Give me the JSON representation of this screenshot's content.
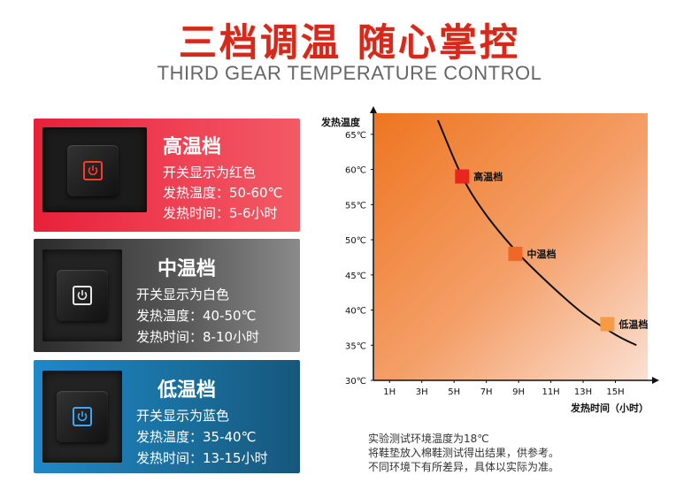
{
  "header": {
    "title": "三档调温 随心掌控",
    "subtitle": "THIRD GEAR TEMPERATURE CONTROL"
  },
  "modes": [
    {
      "name": "高温档",
      "display": "开关显示为红色",
      "temp": "发热温度：50-60℃",
      "time": "发热时间：5-6小时",
      "color": "#e8203a",
      "icon_color": "#ff3a2a"
    },
    {
      "name": "中温档",
      "display": "开关显示为白色",
      "temp": "发热温度：40-50℃",
      "time": "发热时间：8-10小时",
      "color": "#575757",
      "icon_color": "#e8e8e8"
    },
    {
      "name": "低温档",
      "display": "开关显示为蓝色",
      "temp": "发热温度：35-40℃",
      "time": "发热时间：13-15小时",
      "color": "#1e88c8",
      "icon_color": "#3aa8ff"
    }
  ],
  "chart_data": {
    "type": "line",
    "ylabel": "发热温度",
    "xlabel": "发热时间（小时）",
    "y_ticks": [
      "30℃",
      "35℃",
      "40℃",
      "45℃",
      "50℃",
      "55℃",
      "60℃",
      "65℃"
    ],
    "y_values": [
      30,
      35,
      40,
      45,
      50,
      55,
      60,
      65
    ],
    "x_ticks": [
      "1H",
      "3H",
      "5H",
      "7H",
      "9H",
      "11H",
      "13H",
      "15H"
    ],
    "x_values": [
      1,
      3,
      5,
      7,
      9,
      11,
      13,
      15
    ],
    "xlim": [
      0,
      17
    ],
    "ylim": [
      30,
      68
    ],
    "curve": [
      [
        4,
        67
      ],
      [
        5.5,
        59
      ],
      [
        7,
        53.5
      ],
      [
        9,
        48
      ],
      [
        11,
        43.5
      ],
      [
        13,
        39.5
      ],
      [
        15,
        36.5
      ],
      [
        16.3,
        35
      ]
    ],
    "markers": [
      {
        "label": "高温档",
        "x": 5.5,
        "y": 59,
        "color": "#e8261e"
      },
      {
        "label": "中温档",
        "x": 8.8,
        "y": 48,
        "color": "#f06828"
      },
      {
        "label": "低温档",
        "x": 14.5,
        "y": 38,
        "color": "#f59a45"
      }
    ],
    "bg_colors": [
      "#ee7520",
      "#f4a06a",
      "#fbe0d2"
    ]
  },
  "notes": [
    "实验测试环境温度为18℃",
    "将鞋垫放入棉鞋测试得出结果，供参考。",
    "不同环境下有所差异，具体以实际为准。"
  ]
}
